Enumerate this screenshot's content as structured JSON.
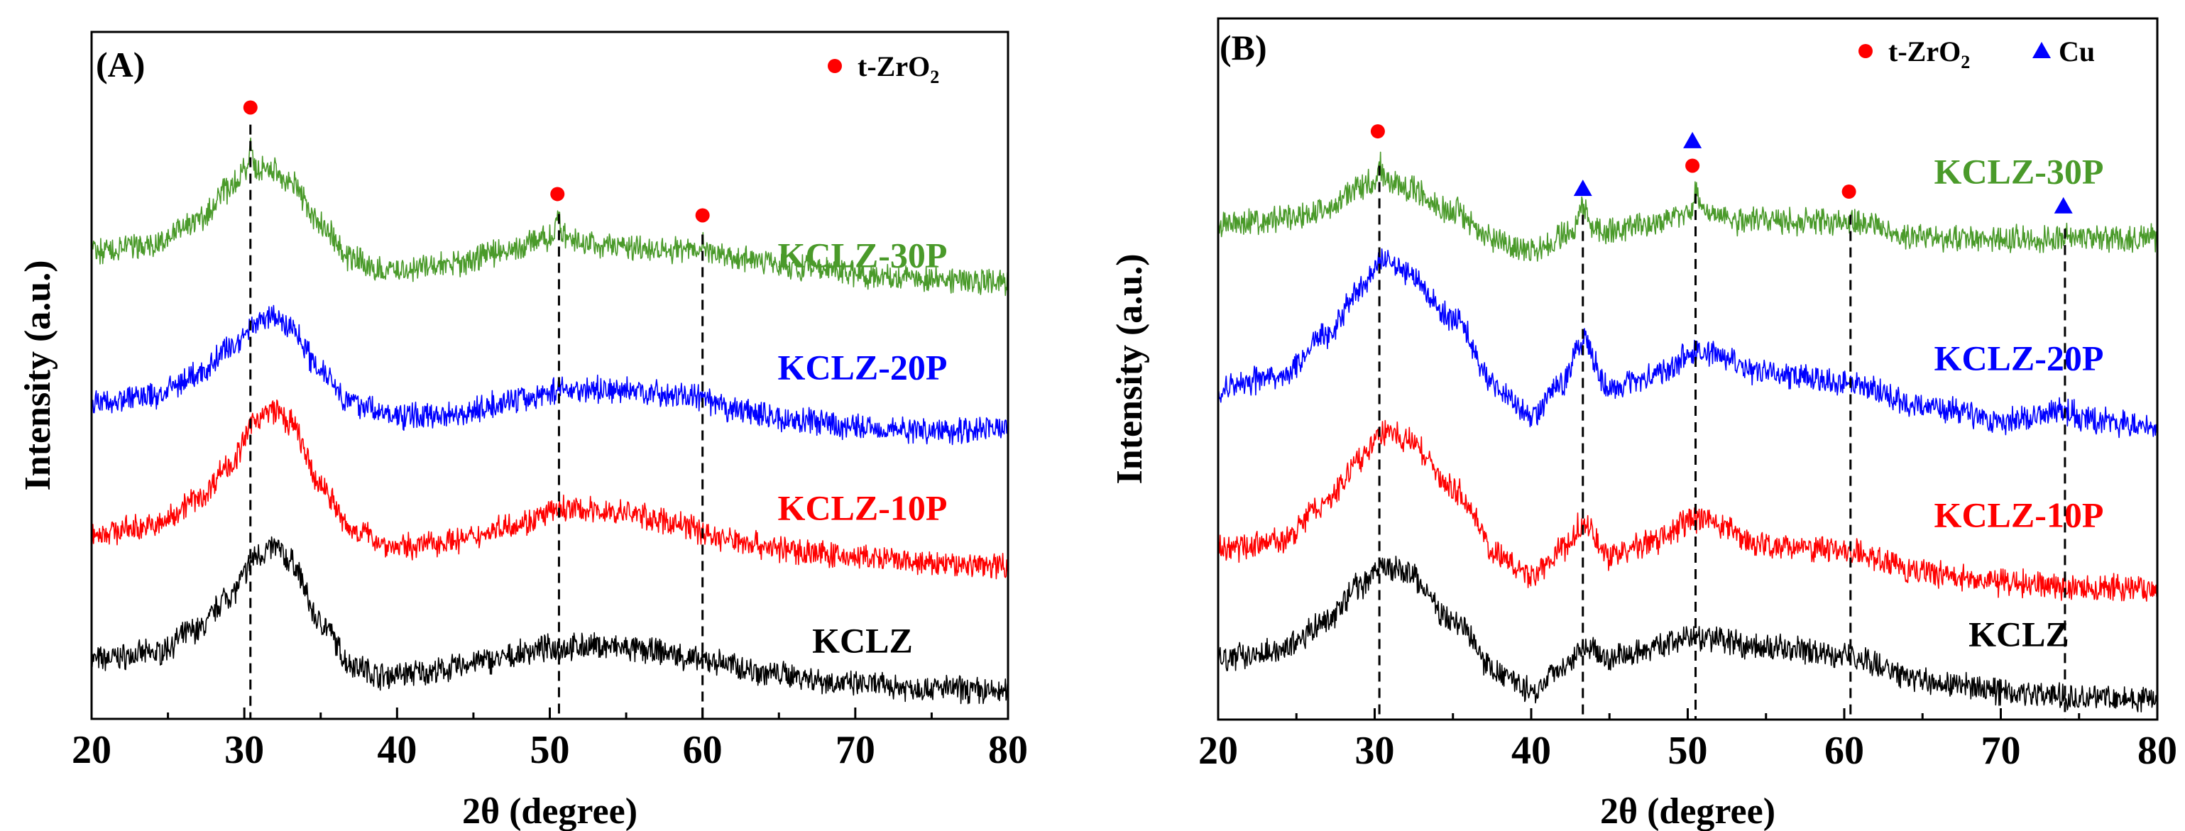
{
  "chart_data": [
    {
      "type": "line",
      "panel_label": "(A)",
      "xlabel": "2θ (degree)",
      "ylabel": "Intensity (a.u.)",
      "xlim": [
        20,
        80
      ],
      "ylim": [
        0,
        100
      ],
      "xticks": [
        "20",
        "30",
        "40",
        "50",
        "60",
        "70",
        "80"
      ],
      "legend": [
        {
          "symbol": "circle",
          "color": "#ff0000",
          "label": "t-ZrO",
          "sub": "2"
        }
      ],
      "series": [
        {
          "name": "KCLZ",
          "color": "#000000",
          "points": [
            [
              20,
              8.6
            ],
            [
              24,
              9.5
            ],
            [
              27,
              13
            ],
            [
              29,
              18
            ],
            [
              31,
              24
            ],
            [
              32,
              25
            ],
            [
              33,
              23
            ],
            [
              35,
              14
            ],
            [
              37,
              8
            ],
            [
              39,
              6.3
            ],
            [
              42,
              6.8
            ],
            [
              46,
              8.5
            ],
            [
              50,
              10.3
            ],
            [
              53,
              10.6
            ],
            [
              57,
              9.8
            ],
            [
              60,
              8.5
            ],
            [
              65,
              6.5
            ],
            [
              70,
              5
            ],
            [
              75,
              4.5
            ],
            [
              80,
              3.9
            ]
          ]
        },
        {
          "name": "KCLZ-10P",
          "color": "#ff0000",
          "points": [
            [
              20,
              27
            ],
            [
              24,
              28
            ],
            [
              27,
              32
            ],
            [
              29,
              37
            ],
            [
              31,
              44
            ],
            [
              32,
              45
            ],
            [
              33,
              43
            ],
            [
              35,
              34
            ],
            [
              37,
              27.5
            ],
            [
              40,
              25
            ],
            [
              44,
              26
            ],
            [
              48,
              28.5
            ],
            [
              51,
              30.5
            ],
            [
              55,
              30
            ],
            [
              58,
              28.5
            ],
            [
              62,
              26
            ],
            [
              66,
              24.5
            ],
            [
              70,
              23.5
            ],
            [
              75,
              22.5
            ],
            [
              80,
              22.4
            ]
          ]
        },
        {
          "name": "KCLZ-20P",
          "color": "#0000ff",
          "points": [
            [
              20,
              46
            ],
            [
              24,
              47
            ],
            [
              27,
              50
            ],
            [
              29,
              54
            ],
            [
              31,
              58
            ],
            [
              32,
              58.5
            ],
            [
              33,
              57
            ],
            [
              35,
              51
            ],
            [
              37,
              46
            ],
            [
              40,
              44
            ],
            [
              44,
              44.5
            ],
            [
              48,
              46.5
            ],
            [
              51,
              48
            ],
            [
              55,
              47.8
            ],
            [
              59,
              47
            ],
            [
              62,
              45
            ],
            [
              66,
              43.5
            ],
            [
              70,
              42.5
            ],
            [
              75,
              42
            ],
            [
              80,
              42.4
            ]
          ]
        },
        {
          "name": "KCLZ-30P",
          "color": "#4a9a2a",
          "points": [
            [
              20,
              68
            ],
            [
              24,
              69
            ],
            [
              27,
              72.5
            ],
            [
              29,
              77
            ],
            [
              30.2,
              80
            ],
            [
              30.4,
              84
            ],
            [
              30.7,
              80
            ],
            [
              32,
              80
            ],
            [
              33,
              78
            ],
            [
              35,
              72
            ],
            [
              37,
              67
            ],
            [
              39,
              65.2
            ],
            [
              43,
              66
            ],
            [
              47,
              68
            ],
            [
              50.1,
              70
            ],
            [
              50.5,
              73
            ],
            [
              50.9,
              70
            ],
            [
              53,
              69
            ],
            [
              57,
              68.5
            ],
            [
              59.8,
              68
            ],
            [
              60,
              70
            ],
            [
              60.2,
              68
            ],
            [
              63,
              67
            ],
            [
              67,
              65.5
            ],
            [
              72,
              64.5
            ],
            [
              76,
              64
            ],
            [
              80,
              63.6
            ]
          ]
        }
      ],
      "markers": [
        {
          "symbol": "circle",
          "color": "#ff0000",
          "x": 30.4,
          "y": 89
        },
        {
          "symbol": "circle",
          "color": "#ff0000",
          "x": 50.5,
          "y": 76.4
        },
        {
          "symbol": "circle",
          "color": "#ff0000",
          "x": 60.0,
          "y": 73.3
        }
      ],
      "dashed_lines": [
        {
          "x": 30.4,
          "top": 86.5
        },
        {
          "x": 50.6,
          "top": 73.5
        },
        {
          "x": 60.0,
          "top": 70.5
        }
      ]
    },
    {
      "type": "line",
      "panel_label": "(B)",
      "xlabel": "2θ (degree)",
      "ylabel": "Intensity (a.u.)",
      "xlim": [
        20,
        80
      ],
      "ylim": [
        0,
        100
      ],
      "xticks": [
        "20",
        "30",
        "40",
        "50",
        "60",
        "70",
        "80"
      ],
      "legend": [
        {
          "symbol": "circle",
          "color": "#ff0000",
          "label": "t-ZrO",
          "sub": "2"
        },
        {
          "symbol": "triangle",
          "color": "#0000ff",
          "label": "Cu",
          "sub": ""
        }
      ],
      "series": [
        {
          "name": "KCLZ",
          "color": "#000000",
          "points": [
            [
              20,
              8.7
            ],
            [
              24,
              10
            ],
            [
              27,
              14
            ],
            [
              29,
              19
            ],
            [
              30.5,
              21.8
            ],
            [
              32,
              21
            ],
            [
              35,
              14
            ],
            [
              38,
              6.5
            ],
            [
              40,
              4.1
            ],
            [
              42,
              7.5
            ],
            [
              43.3,
              10.6
            ],
            [
              45,
              8.7
            ],
            [
              48,
              10.5
            ],
            [
              50.5,
              11.8
            ],
            [
              55,
              10.2
            ],
            [
              60,
              9.1
            ],
            [
              65,
              5.6
            ],
            [
              70,
              4
            ],
            [
              75,
              3.3
            ],
            [
              80,
              2.9
            ]
          ]
        },
        {
          "name": "KCLZ-10P",
          "color": "#ff0000",
          "points": [
            [
              20,
              24.1
            ],
            [
              24,
              25.5
            ],
            [
              27,
              31
            ],
            [
              29,
              37
            ],
            [
              30.5,
              41
            ],
            [
              32,
              40
            ],
            [
              35,
              33
            ],
            [
              38,
              23.5
            ],
            [
              40,
              20.3
            ],
            [
              42,
              24
            ],
            [
              43.3,
              28
            ],
            [
              45,
              23.3
            ],
            [
              48,
              25.5
            ],
            [
              50.5,
              28.7
            ],
            [
              55,
              24.9
            ],
            [
              60,
              24.1
            ],
            [
              65,
              21
            ],
            [
              70,
              19.5
            ],
            [
              75,
              19
            ],
            [
              80,
              18.7
            ]
          ]
        },
        {
          "name": "KCLZ-20P",
          "color": "#0000ff",
          "points": [
            [
              20,
              47.2
            ],
            [
              24,
              49
            ],
            [
              27,
              55
            ],
            [
              29,
              61
            ],
            [
              30.5,
              65.7
            ],
            [
              32,
              64
            ],
            [
              35,
              57.2
            ],
            [
              38,
              47
            ],
            [
              40,
              43.4
            ],
            [
              42,
              48
            ],
            [
              43.3,
              54.2
            ],
            [
              45,
              47.2
            ],
            [
              48,
              49
            ],
            [
              50.5,
              52.6
            ],
            [
              55,
              49.5
            ],
            [
              60,
              48
            ],
            [
              65,
              44.9
            ],
            [
              70,
              42.6
            ],
            [
              74,
              44
            ],
            [
              76,
              42.5
            ],
            [
              80,
              41.8
            ]
          ]
        },
        {
          "name": "KCLZ-30P",
          "color": "#4a9a2a",
          "points": [
            [
              20,
              70.7
            ],
            [
              24,
              71.3
            ],
            [
              27,
              73
            ],
            [
              29,
              76
            ],
            [
              30.1,
              77
            ],
            [
              30.3,
              79.6
            ],
            [
              30.6,
              77
            ],
            [
              32,
              76
            ],
            [
              35,
              72.6
            ],
            [
              38,
              68
            ],
            [
              40,
              66.9
            ],
            [
              42.6,
              69.5
            ],
            [
              43.3,
              72.6
            ],
            [
              44,
              70
            ],
            [
              45,
              69.6
            ],
            [
              48,
              71
            ],
            [
              50.2,
              72.5
            ],
            [
              50.5,
              75.3
            ],
            [
              50.9,
              72.5
            ],
            [
              53,
              71.1
            ],
            [
              57,
              71
            ],
            [
              60,
              71.1
            ],
            [
              65,
              68.8
            ],
            [
              70,
              68.5
            ],
            [
              74,
              68.6
            ],
            [
              74.2,
              70
            ],
            [
              74.4,
              68.6
            ],
            [
              80,
              68.8
            ]
          ]
        }
      ],
      "markers": [
        {
          "symbol": "circle",
          "color": "#ff0000",
          "x": 30.2,
          "y": 83.9
        },
        {
          "symbol": "triangle",
          "color": "#0000ff",
          "x": 43.3,
          "y": 75.7
        },
        {
          "symbol": "triangle",
          "color": "#0000ff",
          "x": 50.3,
          "y": 82.5
        },
        {
          "symbol": "circle",
          "color": "#ff0000",
          "x": 50.3,
          "y": 79
        },
        {
          "symbol": "circle",
          "color": "#ff0000",
          "x": 60.3,
          "y": 75.3
        },
        {
          "symbol": "triangle",
          "color": "#0000ff",
          "x": 74.0,
          "y": 73.2
        }
      ],
      "dashed_lines": [
        {
          "x": 30.3,
          "top": 79
        },
        {
          "x": 43.3,
          "top": 72
        },
        {
          "x": 50.5,
          "top": 75
        },
        {
          "x": 60.4,
          "top": 72
        },
        {
          "x": 74.1,
          "top": 70
        }
      ]
    }
  ]
}
